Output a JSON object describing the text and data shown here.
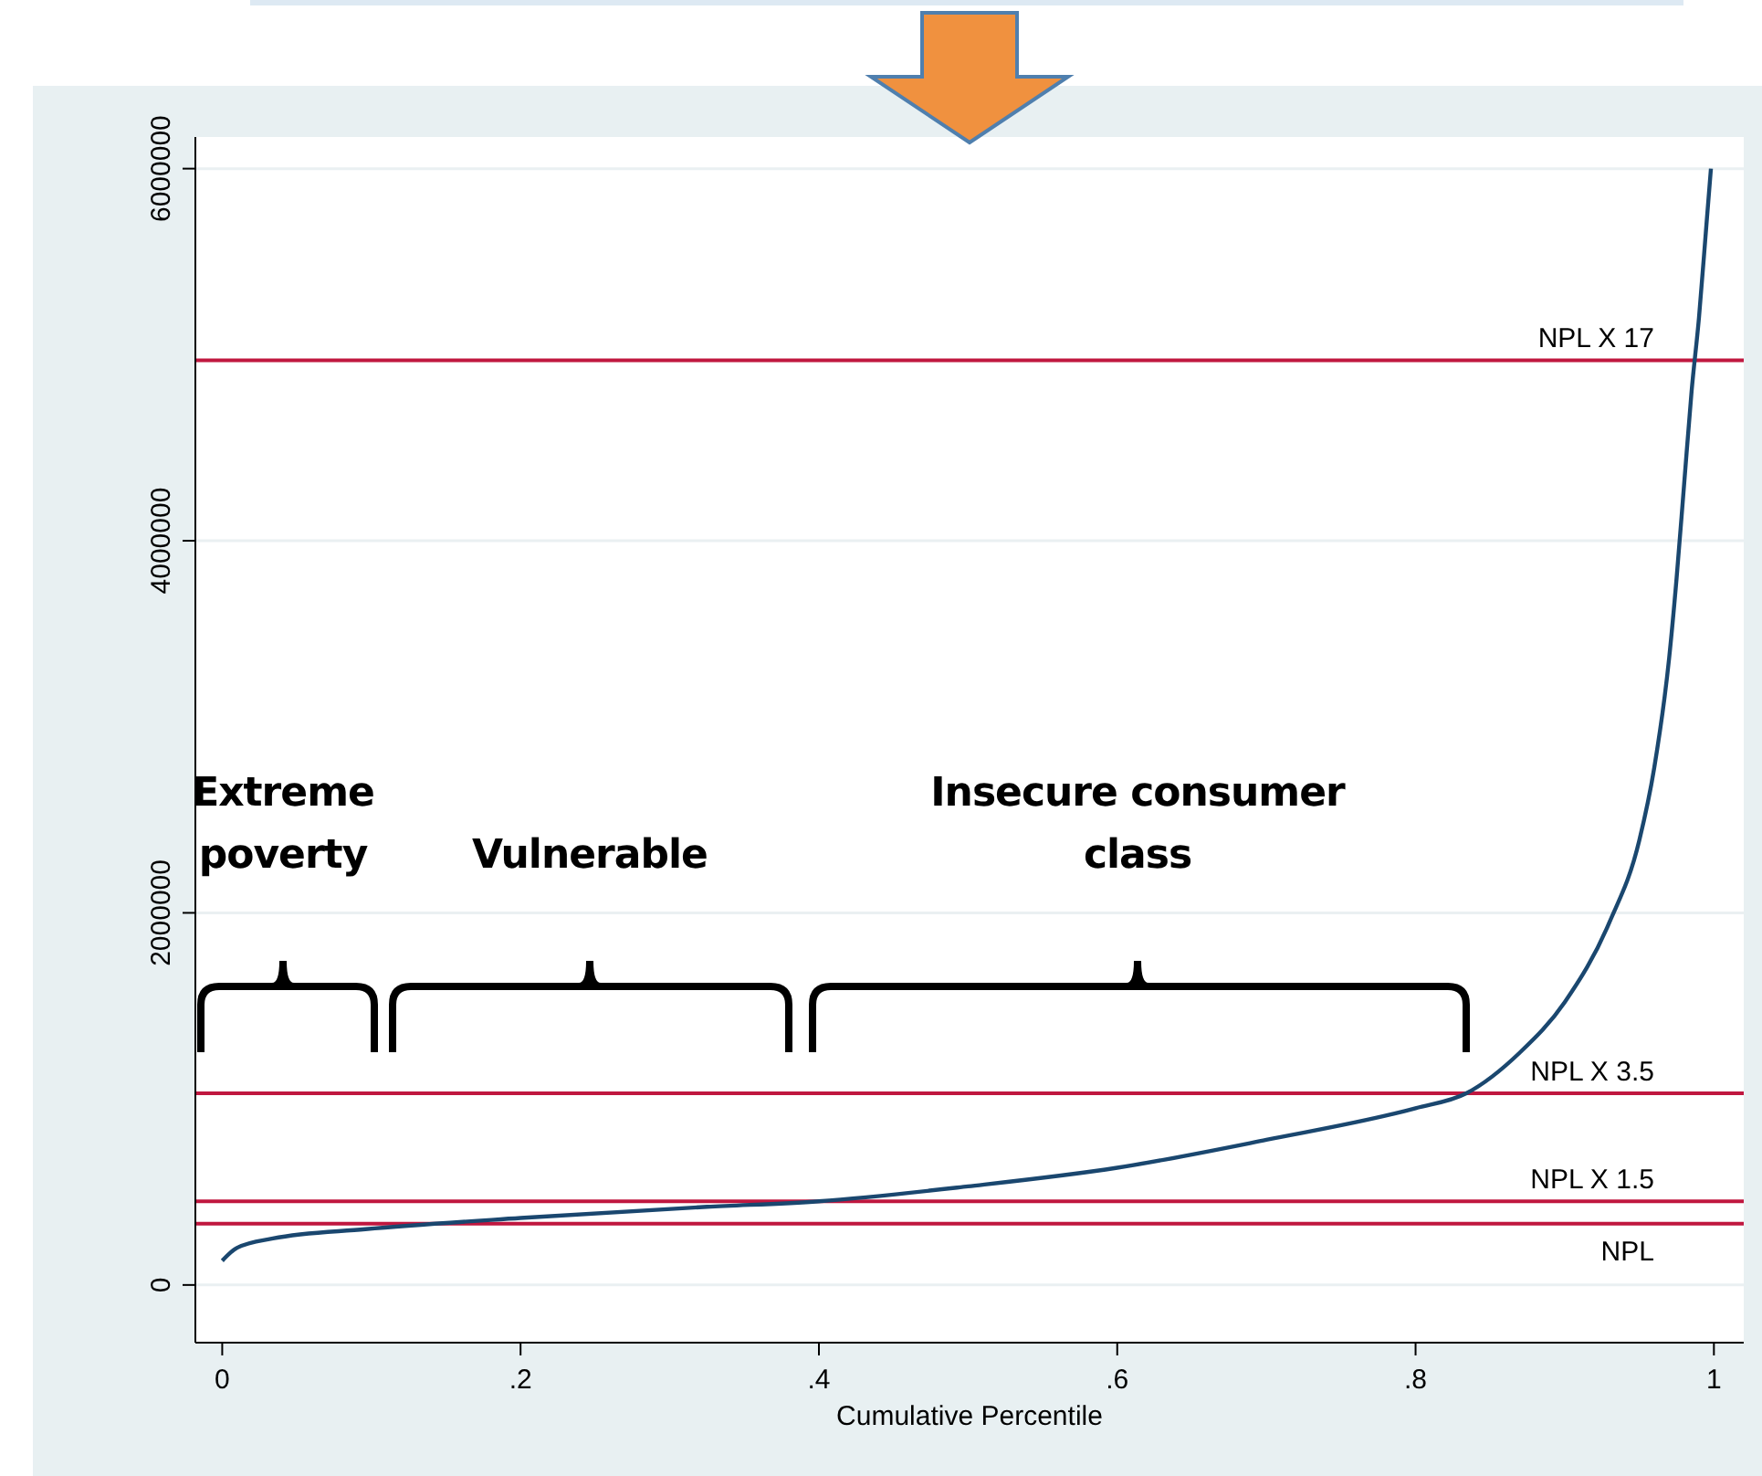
{
  "chart_data": {
    "type": "line",
    "xlabel": "Cumulative Percentile",
    "x": [
      0,
      0.01,
      0.034,
      0.096,
      0.2,
      0.325,
      0.4,
      0.5,
      0.6,
      0.7,
      0.8,
      0.834,
      0.87,
      0.9,
      0.93,
      0.95,
      0.96,
      0.97,
      0.975,
      0.98,
      0.985,
      0.99,
      0.995,
      0.998
    ],
    "series": [
      {
        "color": "#1a476f",
        "values": [
          130000,
          200000,
          250000,
          300000,
          360000,
          420000,
          450000,
          530000,
          630000,
          780000,
          950000,
          1030000,
          1250000,
          1520000,
          1950000,
          2390000,
          2780000,
          3370000,
          3800000,
          4300000,
          4800000,
          5200000,
          5700000,
          6000000
        ]
      }
    ],
    "xlim": [
      -0.018,
      1.02
    ],
    "ylim": [
      -310000,
      6170000
    ],
    "xticks": [
      0,
      {
        "value": 0.2,
        "label": ".2"
      },
      {
        "value": 0.4,
        "label": ".4"
      },
      {
        "value": 0.6,
        "label": ".6"
      },
      {
        "value": 0.8,
        "label": ".8"
      },
      1
    ],
    "yticks": [
      0,
      2000000,
      4000000,
      6000000
    ],
    "grid": "y",
    "marker": "none",
    "line_style": "solid",
    "ref_lines": [
      {
        "axis": "y",
        "value": 330000,
        "label": "NPL",
        "color": "#c0173f"
      },
      {
        "axis": "y",
        "value": 450000,
        "label": "NPL X 1.5",
        "color": "#c0173f"
      },
      {
        "axis": "y",
        "value": 1030000,
        "label": "NPL X 3.5",
        "color": "#c0173f"
      },
      {
        "axis": "y",
        "value": 4970000,
        "label": "NPL X 17",
        "color": "#c0173f"
      }
    ],
    "annotations": [
      "Extreme poverty",
      "Vulnerable",
      "Insecure consumer class"
    ]
  }
}
